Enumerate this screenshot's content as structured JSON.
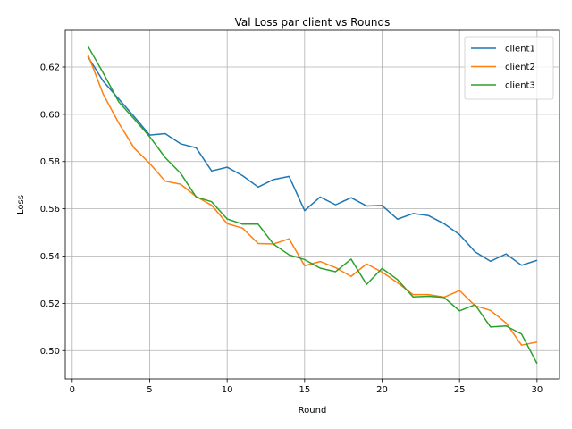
{
  "chart_data": {
    "type": "line",
    "title": "Val Loss par client vs Rounds",
    "xlabel": "Round",
    "ylabel": "Loss",
    "xlim": [
      -0.45,
      31.45
    ],
    "ylim": [
      0.488,
      0.6355
    ],
    "xticks": [
      0,
      5,
      10,
      15,
      20,
      25,
      30
    ],
    "yticks": [
      0.5,
      0.52,
      0.54,
      0.56,
      0.58,
      0.6,
      0.62
    ],
    "ytick_labels": [
      "0.50",
      "0.52",
      "0.54",
      "0.56",
      "0.58",
      "0.60",
      "0.62"
    ],
    "grid": true,
    "legend_position": "top-right",
    "x": [
      1,
      2,
      3,
      4,
      5,
      6,
      7,
      8,
      9,
      10,
      11,
      12,
      13,
      14,
      15,
      16,
      17,
      18,
      19,
      20,
      21,
      22,
      23,
      24,
      25,
      26,
      27,
      28,
      29,
      30
    ],
    "series": [
      {
        "name": "client1",
        "color": "#1f77b4",
        "values": [
          0.6245,
          0.614,
          0.6065,
          0.599,
          0.5912,
          0.5918,
          0.5875,
          0.5858,
          0.576,
          0.5776,
          0.574,
          0.5692,
          0.5724,
          0.5737,
          0.5592,
          0.565,
          0.5617,
          0.5647,
          0.5612,
          0.5614,
          0.5556,
          0.558,
          0.5571,
          0.5537,
          0.5491,
          0.5418,
          0.5378,
          0.5409,
          0.5361,
          0.5382
        ]
      },
      {
        "name": "client2",
        "color": "#ff7f0e",
        "values": [
          0.6255,
          0.6085,
          0.5963,
          0.5857,
          0.5792,
          0.5717,
          0.5704,
          0.5652,
          0.5615,
          0.5537,
          0.5518,
          0.5453,
          0.5451,
          0.5473,
          0.5359,
          0.5377,
          0.5351,
          0.5314,
          0.5367,
          0.5332,
          0.5287,
          0.5237,
          0.5237,
          0.5226,
          0.5254,
          0.519,
          0.517,
          0.5117,
          0.5023,
          0.5036
        ]
      },
      {
        "name": "client3",
        "color": "#2ca02c",
        "values": [
          0.629,
          0.6175,
          0.6053,
          0.598,
          0.5905,
          0.5817,
          0.575,
          0.565,
          0.563,
          0.5557,
          0.5535,
          0.5535,
          0.545,
          0.5405,
          0.5385,
          0.5349,
          0.5334,
          0.5387,
          0.528,
          0.5348,
          0.53,
          0.5227,
          0.523,
          0.5225,
          0.5168,
          0.5194,
          0.51,
          0.5104,
          0.507,
          0.4945
        ]
      }
    ]
  }
}
